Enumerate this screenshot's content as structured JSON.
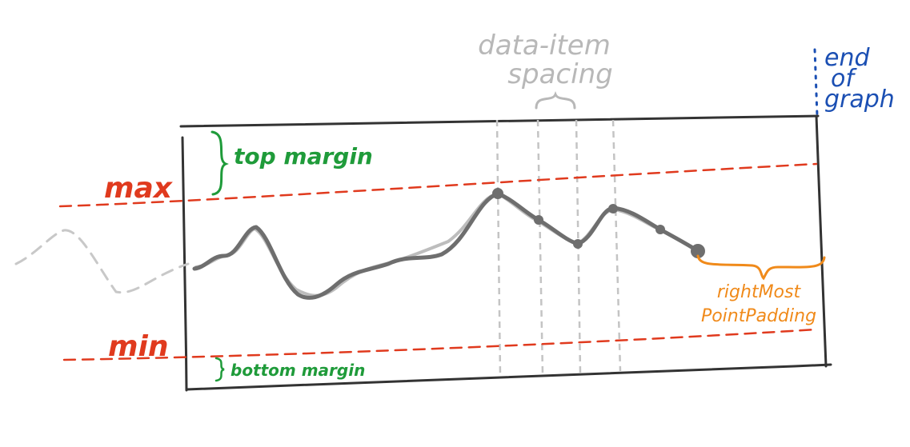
{
  "labels": {
    "max": "max",
    "min": "min",
    "top_margin": "top margin",
    "bottom_margin": "bottom margin",
    "data_item_spacing": [
      "data-item",
      "spacing"
    ],
    "end_of_graph": [
      "end",
      "of",
      "graph"
    ],
    "right_most_point_padding": [
      "rightMost",
      "PointPadding"
    ]
  },
  "colors": {
    "frame": "#333333",
    "line": "#6e6e6e",
    "shadow_line": "#bdbdbd",
    "guides": "#c4c4c4",
    "max_min": "#e03a1e",
    "margins": "#1f9b3a",
    "spacing": "#b8b8b8",
    "end_of_graph": "#1b4fb3",
    "padding": "#f08a1a"
  },
  "icons": {
    "top_margin": "curly-brace-icon",
    "bottom_margin": "curly-brace-icon",
    "data_item_spacing": "curly-brace-icon",
    "right_most_point_padding": "curly-brace-icon"
  }
}
